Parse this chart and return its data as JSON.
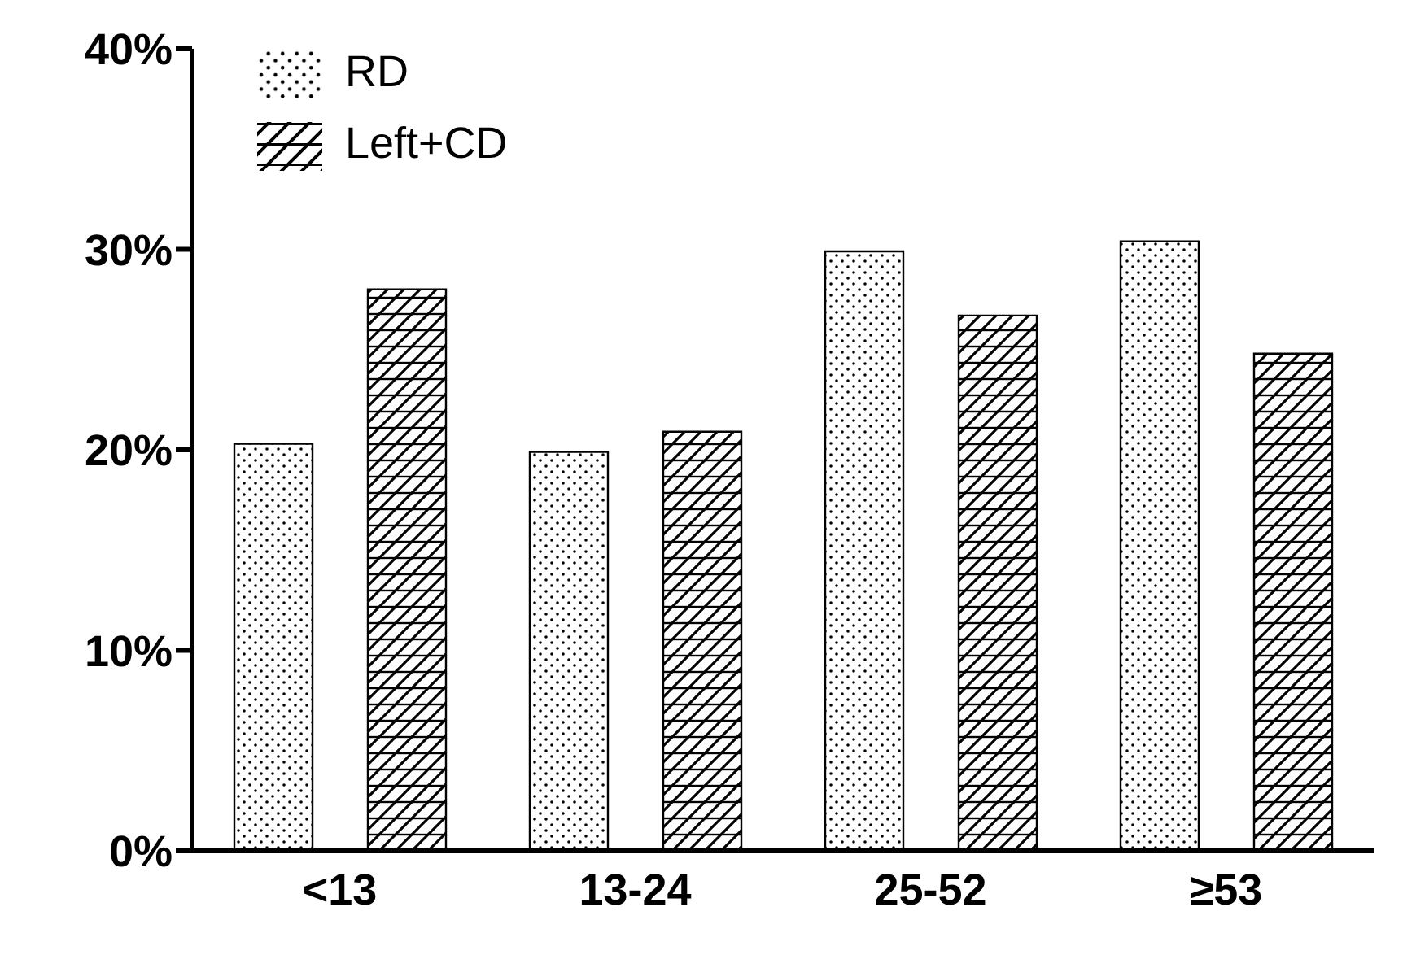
{
  "chart_data": {
    "type": "bar",
    "categories": [
      "<13",
      "13-24",
      "25-52",
      "≥53"
    ],
    "series": [
      {
        "name": "RD",
        "color": "#000000",
        "values": [
          20.3,
          19.9,
          29.9,
          30.4
        ]
      },
      {
        "name": "Left+CD",
        "color": "#000000",
        "values": [
          28.0,
          20.9,
          26.7,
          24.8
        ]
      }
    ],
    "ylim": [
      0,
      40
    ],
    "yticks": [
      {
        "value": 0,
        "label": "0%"
      },
      {
        "value": 10,
        "label": "10%"
      },
      {
        "value": 20,
        "label": "20%"
      },
      {
        "value": 30,
        "label": "30%"
      },
      {
        "value": 40,
        "label": "40%"
      }
    ],
    "grid": false,
    "legend": "top left"
  }
}
